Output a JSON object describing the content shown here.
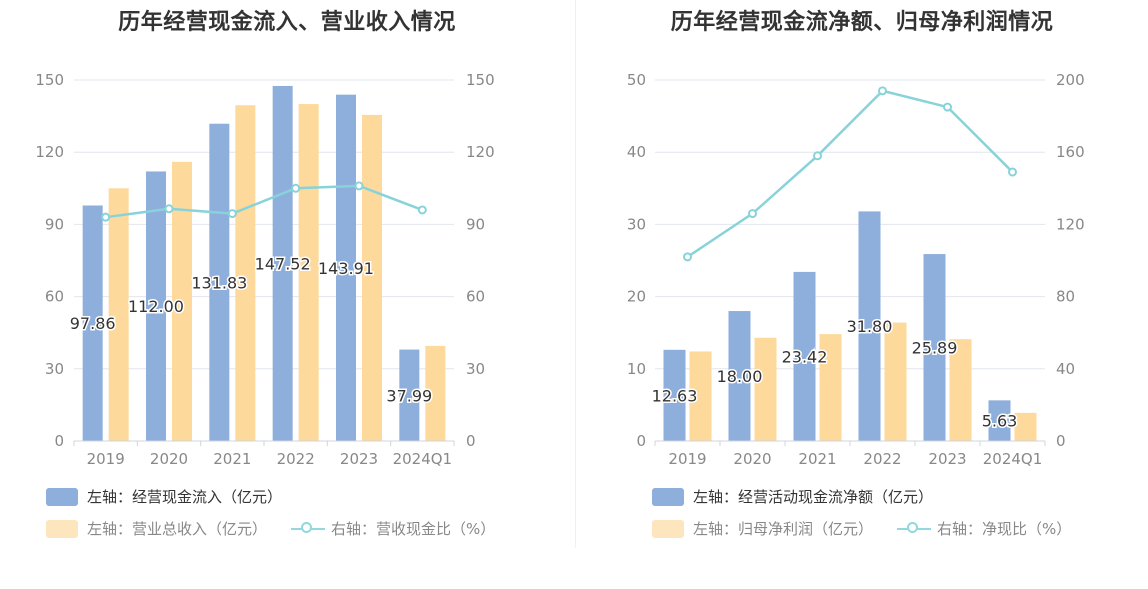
{
  "colors": {
    "bar_primary": "#8eaedc",
    "bar_secondary": "#fdd99b",
    "line": "#88d3d9",
    "grid": "#e2e6ee",
    "axis_text": "#888888"
  },
  "chart_data": [
    {
      "type": "bar",
      "title": "历年经营现金流入、营业收入情况",
      "categories": [
        "2019",
        "2020",
        "2021",
        "2022",
        "2023",
        "2024Q1"
      ],
      "left_axis": {
        "ylim": [
          0,
          150
        ],
        "ticks": [
          "0",
          "30",
          "60",
          "90",
          "120",
          "150"
        ]
      },
      "right_axis": {
        "ylim": [
          0,
          150
        ],
        "ticks": [
          "0",
          "30",
          "60",
          "90",
          "120",
          "150"
        ]
      },
      "series": [
        {
          "name": "左轴：经营现金流入（亿元）",
          "type": "bar",
          "axis": "left",
          "values": [
            97.86,
            112.0,
            131.83,
            147.52,
            143.91,
            37.99
          ],
          "labels": [
            "97.86",
            "112.00",
            "131.83",
            "147.52",
            "143.91",
            "37.99"
          ]
        },
        {
          "name": "左轴：营业总收入（亿元）",
          "type": "bar",
          "axis": "left",
          "values": [
            105,
            116,
            139.5,
            140,
            135.5,
            39.5
          ]
        },
        {
          "name": "右轴：营收现金比（%）",
          "type": "line",
          "axis": "right",
          "values": [
            93,
            96.5,
            94.5,
            105,
            106,
            96
          ]
        }
      ]
    },
    {
      "type": "bar",
      "title": "历年经营现金流净额、归母净利润情况",
      "categories": [
        "2019",
        "2020",
        "2021",
        "2022",
        "2023",
        "2024Q1"
      ],
      "left_axis": {
        "ylim": [
          0,
          50
        ],
        "ticks": [
          "0",
          "10",
          "20",
          "30",
          "40",
          "50"
        ]
      },
      "right_axis": {
        "ylim": [
          0,
          200
        ],
        "ticks": [
          "0",
          "40",
          "80",
          "120",
          "160",
          "200"
        ]
      },
      "series": [
        {
          "name": "左轴：经营活动现金流净额（亿元）",
          "type": "bar",
          "axis": "left",
          "values": [
            12.63,
            18.0,
            23.42,
            31.8,
            25.89,
            5.63
          ],
          "labels": [
            "12.63",
            "18.00",
            "23.42",
            "31.80",
            "25.89",
            "5.63"
          ]
        },
        {
          "name": "左轴：归母净利润（亿元）",
          "type": "bar",
          "axis": "left",
          "values": [
            12.4,
            14.3,
            14.8,
            16.4,
            14.1,
            3.9
          ]
        },
        {
          "name": "右轴：净现比（%）",
          "type": "line",
          "axis": "right",
          "values": [
            102,
            126,
            158,
            194,
            185,
            149
          ]
        }
      ]
    }
  ]
}
